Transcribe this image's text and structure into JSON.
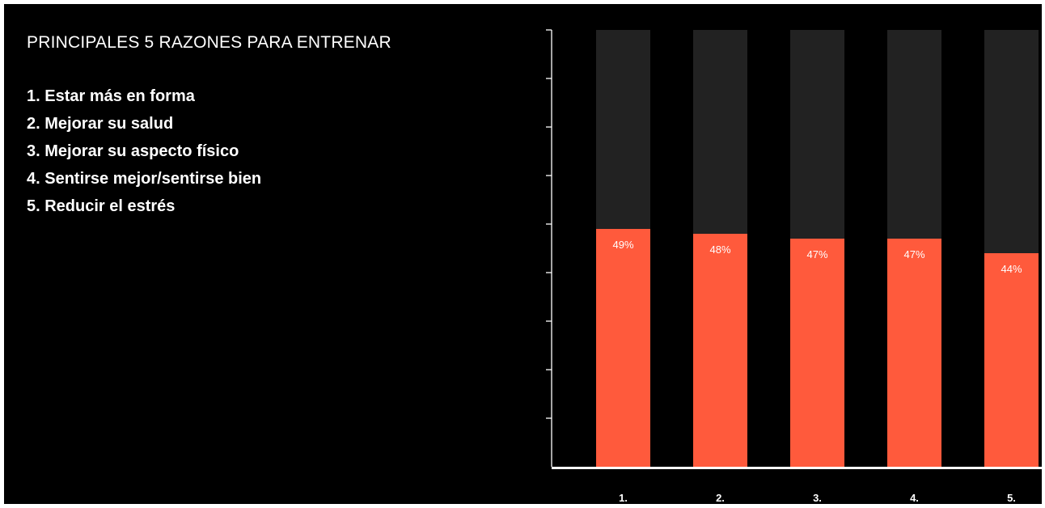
{
  "title": "PRINCIPALES 5 RAZONES PARA ENTRENAR",
  "reasons": [
    "1. Estar más en forma",
    "2. Mejorar su salud",
    "3. Mejorar su aspecto físico",
    "4. Sentirse mejor/sentirse bien",
    "5. Reducir el estrés"
  ],
  "colors": {
    "background": "#000000",
    "bar_fill": "#ff5a3c",
    "bar_track": "#222222",
    "axis": "#ffffff",
    "text": "#ffffff"
  },
  "chart_data": {
    "type": "bar",
    "categories": [
      "1.",
      "2.",
      "3.",
      "4.",
      "5."
    ],
    "values": [
      49,
      48,
      47,
      47,
      44
    ],
    "data_labels": [
      "49%",
      "48%",
      "47%",
      "47%",
      "44%"
    ],
    "ylim": [
      0,
      90
    ],
    "y_ticks": [
      0,
      10,
      20,
      30,
      40,
      50,
      60,
      70,
      80,
      90
    ],
    "grid": false,
    "legend": false,
    "title": "",
    "xlabel": "",
    "ylabel": ""
  }
}
